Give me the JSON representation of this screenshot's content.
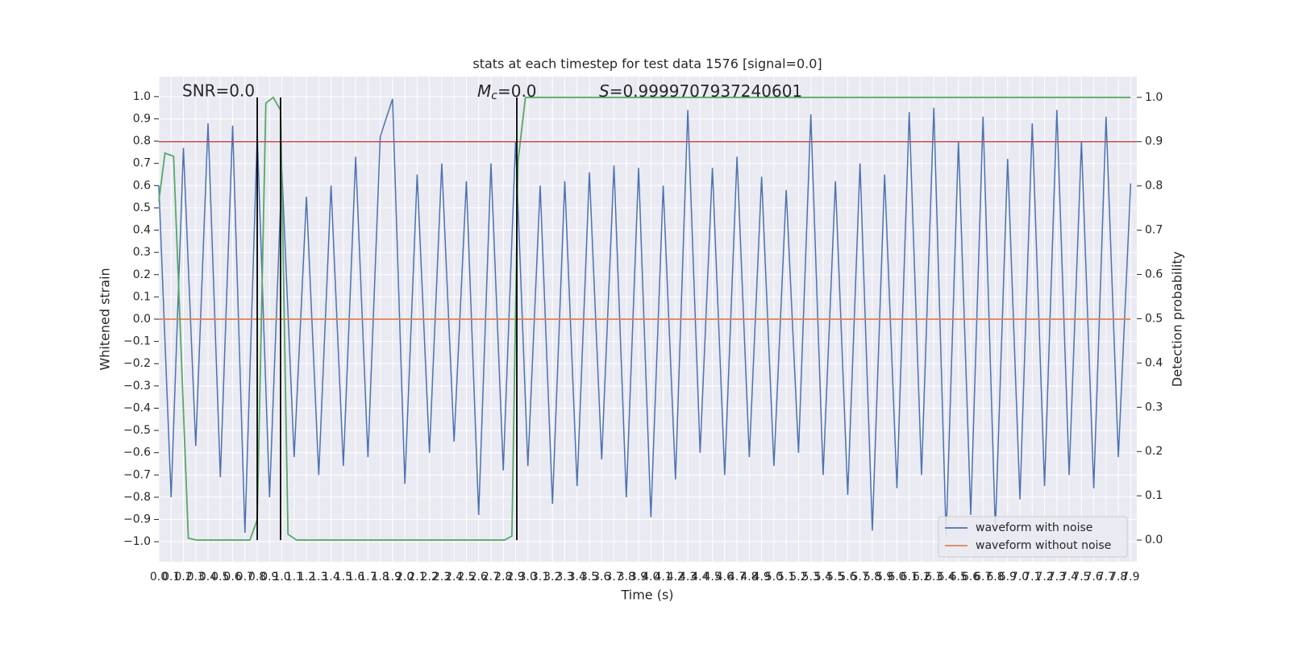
{
  "chart_data": {
    "type": "line",
    "title": "stats at each timestep for test data 1576 [signal=0.0]",
    "x_label": "Time (s)",
    "y_label": "Whitened strain",
    "y2_label": "Detection probability",
    "annotations": [
      {
        "text": "SNR=0.0"
      },
      {
        "math": "M",
        "sub": "c",
        "text": "=0.0"
      },
      {
        "math": "S",
        "text": "=0.9999707937240601"
      }
    ],
    "series": [
      {
        "name": "waveform with noise",
        "color": "#4c72b0",
        "x": [
          0,
          0.1,
          0.2,
          0.3,
          0.4,
          0.5,
          0.6,
          0.7,
          0.8,
          0.9,
          1,
          1.1,
          1.2,
          1.3,
          1.4,
          1.5,
          1.6,
          1.7,
          1.8,
          1.9,
          2,
          2.1,
          2.2,
          2.3,
          2.4,
          2.5,
          2.6,
          2.7,
          2.8,
          2.9,
          3,
          3.1,
          3.2,
          3.3,
          3.4,
          3.5,
          3.6,
          3.7,
          3.8,
          3.9,
          4,
          4.1,
          4.2,
          4.3,
          4.4,
          4.5,
          4.6,
          4.7,
          4.8,
          4.9,
          5,
          5.1,
          5.2,
          5.3,
          5.4,
          5.5,
          5.6,
          5.7,
          5.8,
          5.9,
          6,
          6.1,
          6.2,
          6.3,
          6.4,
          6.5,
          6.6,
          6.7,
          6.8,
          6.9,
          7,
          7.1,
          7.2,
          7.3,
          7.4,
          7.5,
          7.6,
          7.7,
          7.8,
          7.9
        ],
        "values": [
          0.6,
          -0.8,
          0.77,
          -0.57,
          0.88,
          -0.71,
          0.87,
          -0.96,
          0.83,
          -0.8,
          0.67,
          -0.62,
          0.55,
          -0.7,
          0.6,
          -0.66,
          0.73,
          -0.62,
          0.82,
          0.99,
          -0.74,
          0.65,
          -0.6,
          0.7,
          -0.55,
          0.62,
          -0.88,
          0.7,
          -0.68,
          0.8,
          -0.66,
          0.6,
          -0.83,
          0.62,
          -0.75,
          0.66,
          -0.63,
          0.69,
          -0.8,
          0.68,
          -0.89,
          0.6,
          -0.72,
          0.94,
          -0.6,
          0.68,
          -0.7,
          0.73,
          -0.62,
          0.64,
          -0.66,
          0.58,
          -0.6,
          0.92,
          -0.7,
          0.62,
          -0.79,
          0.7,
          -0.95,
          0.65,
          -0.76,
          0.93,
          -0.7,
          0.95,
          -0.98,
          0.8,
          -0.88,
          0.91,
          -0.95,
          0.72,
          -0.81,
          0.88,
          -0.75,
          0.94,
          -0.7,
          0.8,
          -0.76,
          0.91,
          -0.62,
          0.61
        ]
      },
      {
        "name": "waveform without noise",
        "color": "#dd8452",
        "x": [
          0,
          7.9
        ],
        "values": [
          0,
          0
        ]
      },
      {
        "color": "#55a868",
        "axis": "y2",
        "x": [
          0,
          0.05,
          0.12,
          0.24,
          0.31,
          0.74,
          0.8,
          0.87,
          0.93,
          0.99,
          1.05,
          1.12,
          2.81,
          2.87,
          2.92,
          2.98,
          7.9
        ],
        "values": [
          0.765,
          0.874,
          0.867,
          0.004,
          0,
          0,
          0.046,
          0.987,
          1,
          0.971,
          0.013,
          0,
          0,
          0.009,
          0.856,
          1,
          1
        ]
      }
    ],
    "hlines": [
      {
        "value": 0.9,
        "axis": "y2",
        "color": "#c44e52"
      }
    ],
    "vlines": {
      "values": [
        0.8,
        0.99,
        2.91
      ],
      "color": "#000000"
    },
    "xlim": [
      0,
      7.95
    ],
    "ylim": [
      -1.09,
      1.09
    ],
    "y2lim": [
      -0.049,
      1.047
    ],
    "xticks": [
      {
        "value": 0,
        "label": "0.0"
      },
      0.1,
      0.2,
      0.3,
      0.4,
      0.5,
      0.6,
      0.7,
      0.8,
      0.9,
      {
        "value": 1,
        "label": "1.0"
      },
      1.1,
      1.2,
      1.3,
      1.4,
      1.5,
      1.6,
      1.7,
      1.8,
      1.9,
      {
        "value": 2,
        "label": "2.0"
      },
      2.1,
      2.2,
      2.3,
      2.4,
      2.5,
      2.6,
      2.7,
      2.8,
      2.9,
      {
        "value": 3,
        "label": "3.0"
      },
      3.1,
      3.2,
      3.3,
      3.4,
      3.5,
      3.6,
      3.7,
      3.8,
      3.9,
      {
        "value": 4,
        "label": "4.0"
      },
      4.1,
      4.2,
      4.3,
      4.4,
      4.5,
      4.6,
      4.7,
      4.8,
      4.9,
      {
        "value": 5,
        "label": "5.0"
      },
      5.1,
      5.2,
      5.3,
      5.4,
      5.5,
      5.6,
      5.7,
      5.8,
      5.9,
      {
        "value": 6,
        "label": "6.0"
      },
      6.1,
      6.2,
      6.3,
      6.4,
      6.5,
      6.6,
      6.7,
      6.8,
      6.9,
      {
        "value": 7,
        "label": "7.0"
      },
      7.1,
      7.2,
      7.3,
      7.4,
      7.5,
      7.6,
      7.7,
      7.8,
      7.9
    ],
    "yticks": [
      {
        "value": -1,
        "label": "−1.0"
      },
      {
        "value": -0.9,
        "label": "−0.9"
      },
      {
        "value": -0.8,
        "label": "−0.8"
      },
      {
        "value": -0.7,
        "label": "−0.7"
      },
      {
        "value": -0.6,
        "label": "−0.6"
      },
      {
        "value": -0.5,
        "label": "−0.5"
      },
      {
        "value": -0.4,
        "label": "−0.4"
      },
      {
        "value": -0.3,
        "label": "−0.3"
      },
      {
        "value": -0.2,
        "label": "−0.2"
      },
      {
        "value": -0.1,
        "label": "−0.1"
      },
      {
        "value": 0,
        "label": "0.0"
      },
      0.1,
      0.2,
      0.3,
      0.4,
      0.5,
      0.6,
      0.7,
      0.8,
      0.9,
      {
        "value": 1,
        "label": "1.0"
      }
    ],
    "y2ticks": [
      {
        "value": 0,
        "label": "0.0"
      },
      0.1,
      0.2,
      0.3,
      0.4,
      0.5,
      0.6,
      0.7,
      0.8,
      0.9,
      {
        "value": 1,
        "label": "1.0"
      }
    ],
    "grid": true,
    "legend": "lower right"
  }
}
